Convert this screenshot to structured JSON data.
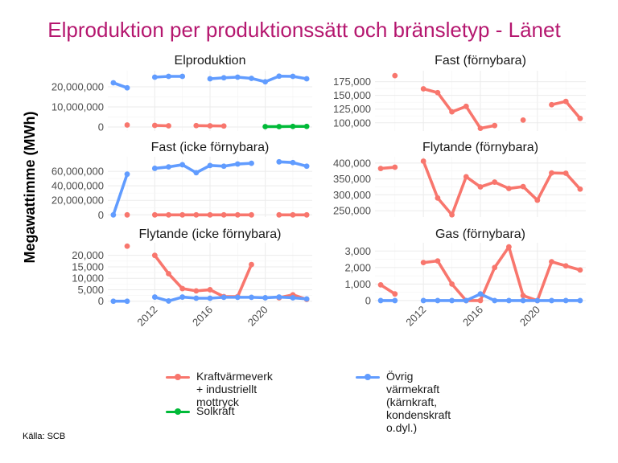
{
  "title": "Elproduktion per produktionssätt och bränsletyp - Länet",
  "source": "Källa: SCB",
  "colors": {
    "title": "#b5176f",
    "kraft": "#f8766d",
    "ovrig": "#619cff",
    "sol": "#00ba38"
  },
  "chart_data": {
    "type": "line",
    "ylabel": "Megawattimme (MWh)",
    "xlabel": "",
    "x_ticks": [
      2012,
      2016,
      2020
    ],
    "legend": {
      "placement": "bottom",
      "entries": [
        {
          "key": "kraft",
          "label": "Kraftvärmeverk + industriellt\nmottryck"
        },
        {
          "key": "ovrig",
          "label": "Övrig värmekraft (kärnkraft,\nkondenskraft o.dyl.)"
        },
        {
          "key": "sol",
          "label": "Solkraft"
        }
      ]
    },
    "panels": [
      {
        "title": "Elproduktion",
        "ylim": [
          -2000000,
          28000000
        ],
        "yticks": [
          0,
          10000000,
          20000000
        ],
        "ytick_labels": [
          "0",
          "10,000,000",
          "20,000,000"
        ],
        "series": [
          {
            "key": "kraft",
            "x": [
              2009,
              2010,
              2011,
              2012,
              2013,
              2014,
              2015,
              2016,
              2017,
              2018,
              2019,
              2020,
              2021,
              2022,
              2023
            ],
            "y": [
              null,
              1000000,
              null,
              800000,
              600000,
              null,
              700000,
              600000,
              500000,
              null,
              null,
              null,
              null,
              null,
              null
            ]
          },
          {
            "key": "ovrig",
            "x": [
              2009,
              2010,
              2011,
              2012,
              2013,
              2014,
              2015,
              2016,
              2017,
              2018,
              2019,
              2020,
              2021,
              2022,
              2023
            ],
            "y": [
              22000000,
              19500000,
              null,
              24800000,
              25200000,
              25200000,
              null,
              24000000,
              24500000,
              24800000,
              24200000,
              22500000,
              25300000,
              25200000,
              24000000
            ]
          },
          {
            "key": "sol",
            "x": [
              2020,
              2021,
              2022,
              2023
            ],
            "y": [
              200000,
              200000,
              300000,
              300000
            ]
          }
        ]
      },
      {
        "title": "Fast (förnybara)",
        "ylim": [
          85000,
          195000
        ],
        "yticks": [
          100000,
          125000,
          150000,
          175000
        ],
        "ytick_labels": [
          "100,000",
          "125,000",
          "150,000",
          "175,000"
        ],
        "series": [
          {
            "key": "kraft",
            "x": [
              2009,
              2010,
              2011,
              2012,
              2013,
              2014,
              2015,
              2016,
              2017,
              2018,
              2019,
              2020,
              2021,
              2022,
              2023
            ],
            "y": [
              null,
              186000,
              null,
              162000,
              155000,
              120000,
              130000,
              90000,
              95000,
              null,
              105000,
              null,
              133000,
              139000,
              108000
            ]
          }
        ]
      },
      {
        "title": "Fast (icke förnybara)",
        "ylim": [
          -3000000,
          80000000
        ],
        "yticks": [
          0,
          20000000,
          40000000,
          60000000
        ],
        "ytick_labels": [
          "0",
          "20,000,000",
          "40,000,000",
          "60,000,000"
        ],
        "series": [
          {
            "key": "kraft",
            "x": [
              2009,
              2010,
              2011,
              2012,
              2013,
              2014,
              2015,
              2016,
              2017,
              2018,
              2019,
              2020,
              2021,
              2022,
              2023
            ],
            "y": [
              null,
              0,
              null,
              0,
              0,
              0,
              0,
              0,
              0,
              0,
              0,
              null,
              0,
              0,
              0
            ]
          },
          {
            "key": "ovrig",
            "x": [
              2009,
              2010,
              2011,
              2012,
              2013,
              2014,
              2015,
              2016,
              2017,
              2018,
              2019,
              2020,
              2021,
              2022,
              2023
            ],
            "y": [
              0,
              56000000,
              null,
              64000000,
              66000000,
              69000000,
              58000000,
              68000000,
              67000000,
              70000000,
              71000000,
              null,
              73000000,
              72000000,
              67000000
            ]
          }
        ]
      },
      {
        "title": "Flytande (förnybara)",
        "ylim": [
          230000,
          420000
        ],
        "yticks": [
          250000,
          300000,
          350000,
          400000
        ],
        "ytick_labels": [
          "250,000",
          "300,000",
          "350,000",
          "400,000"
        ],
        "series": [
          {
            "key": "kraft",
            "x": [
              2009,
              2010,
              2011,
              2012,
              2013,
              2014,
              2015,
              2016,
              2017,
              2018,
              2019,
              2020,
              2021,
              2022,
              2023
            ],
            "y": [
              383000,
              387000,
              null,
              406000,
              290000,
              237000,
              357000,
              325000,
              340000,
              320000,
              326000,
              283000,
              369000,
              368000,
              318000
            ]
          }
        ]
      },
      {
        "title": "Flytande (icke förnybara)",
        "ylim": [
          -800,
          25500
        ],
        "yticks": [
          0,
          5000,
          10000,
          15000,
          20000
        ],
        "ytick_labels": [
          "0",
          "5,000",
          "10,000",
          "15,000",
          "20,000"
        ],
        "series": [
          {
            "key": "kraft",
            "x": [
              2009,
              2010,
              2011,
              2012,
              2013,
              2014,
              2015,
              2016,
              2017,
              2018,
              2019,
              2020,
              2021,
              2022,
              2023
            ],
            "y": [
              null,
              24000,
              null,
              20000,
              12000,
              5500,
              4500,
              5000,
              2000,
              2000,
              16000,
              null,
              1500,
              2800,
              800
            ]
          },
          {
            "key": "ovrig",
            "x": [
              2009,
              2010,
              2011,
              2012,
              2013,
              2014,
              2015,
              2016,
              2017,
              2018,
              2019,
              2020,
              2021,
              2022,
              2023
            ],
            "y": [
              0,
              0,
              null,
              1800,
              100,
              1800,
              1300,
              1300,
              1700,
              1700,
              1700,
              1500,
              1800,
              1500,
              1000
            ]
          }
        ]
      },
      {
        "title": "Gas (förnybara)",
        "ylim": [
          -150,
          3500
        ],
        "yticks": [
          0,
          1000,
          2000,
          3000
        ],
        "ytick_labels": [
          "0",
          "1,000",
          "2,000",
          "3,000"
        ],
        "series": [
          {
            "key": "kraft",
            "x": [
              2009,
              2010,
              2011,
              2012,
              2013,
              2014,
              2015,
              2016,
              2017,
              2018,
              2019,
              2020,
              2021,
              2022,
              2023
            ],
            "y": [
              950,
              400,
              null,
              2300,
              2400,
              1000,
              0,
              0,
              2000,
              3250,
              300,
              0,
              2350,
              2100,
              1850
            ]
          },
          {
            "key": "ovrig",
            "x": [
              2009,
              2010,
              2011,
              2012,
              2013,
              2014,
              2015,
              2016,
              2017,
              2018,
              2019,
              2020,
              2021,
              2022,
              2023
            ],
            "y": [
              0,
              0,
              null,
              0,
              0,
              0,
              0,
              400,
              0,
              0,
              0,
              0,
              0,
              0,
              0
            ]
          }
        ]
      }
    ]
  }
}
